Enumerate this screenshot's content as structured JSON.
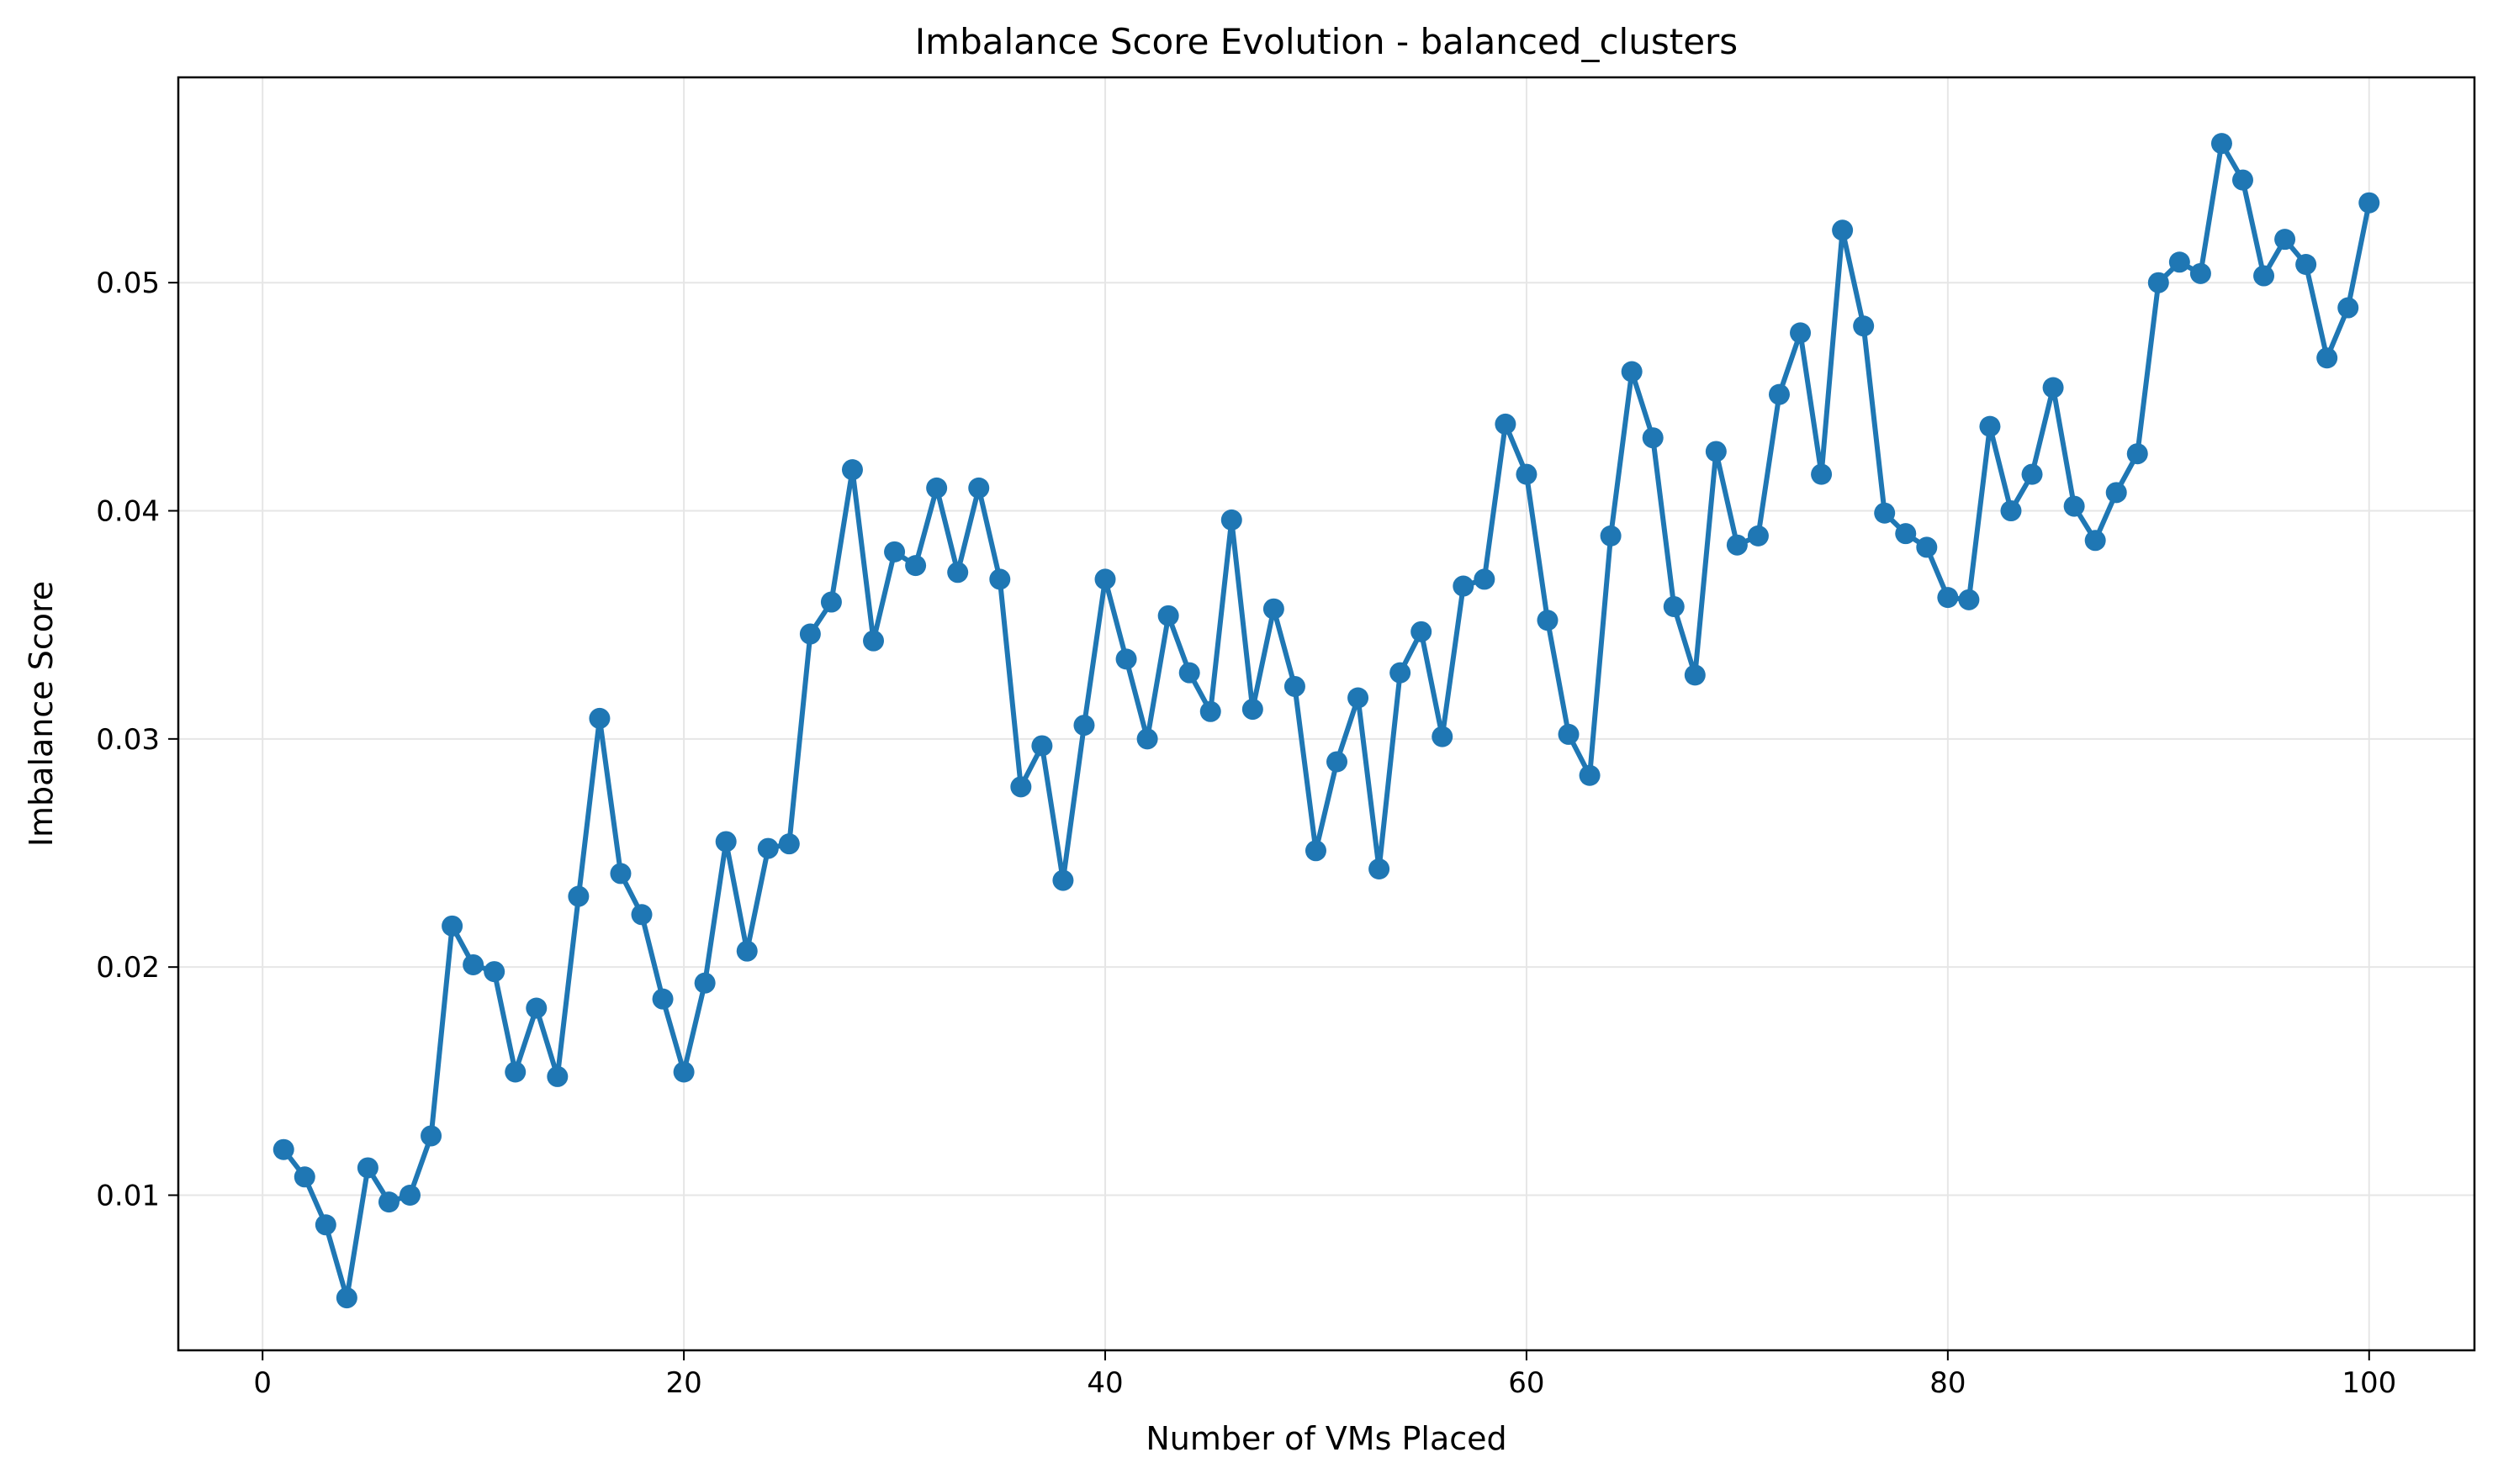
{
  "chart_data": {
    "type": "line",
    "title": "Imbalance Score Evolution - balanced_clusters",
    "xlabel": "Number of VMs Placed",
    "ylabel": "Imbalance Score",
    "xlim": [
      -4,
      105
    ],
    "ylim": [
      0.0032,
      0.059
    ],
    "xticks": [
      0,
      20,
      40,
      60,
      80,
      100
    ],
    "yticks": [
      0.01,
      0.02,
      0.03,
      0.04,
      0.05
    ],
    "xtick_labels": [
      "0",
      "20",
      "40",
      "60",
      "80",
      "100"
    ],
    "ytick_labels": [
      "0.01",
      "0.02",
      "0.03",
      "0.04",
      "0.05"
    ],
    "grid": true,
    "color": "#1f77b4",
    "marker": "circle",
    "series": [
      {
        "x": [
          1,
          2,
          3,
          4,
          5,
          6,
          7,
          8,
          9,
          10,
          11,
          12,
          13,
          14,
          15,
          16,
          17,
          18,
          19,
          20,
          21,
          22,
          23,
          24,
          25,
          26,
          27,
          28,
          29,
          30,
          31,
          32,
          33,
          34,
          35,
          36,
          37,
          38,
          39,
          40,
          41,
          42,
          43,
          44,
          45,
          46,
          47,
          48,
          49,
          50,
          51,
          52,
          53,
          54,
          55,
          56,
          57,
          58,
          59,
          60,
          61,
          62,
          63,
          64,
          65,
          66,
          67,
          68,
          69,
          70,
          71,
          72,
          73,
          74,
          75,
          76,
          77,
          78,
          79,
          80,
          81,
          82,
          83,
          84,
          85,
          86,
          87,
          88,
          89,
          90,
          91,
          92,
          93,
          94,
          95,
          96,
          97,
          98,
          99,
          100
        ],
        "values": [
          0.012,
          0.0108,
          0.0087,
          0.0055,
          0.0112,
          0.0097,
          0.01,
          0.0126,
          0.0218,
          0.0201,
          0.0198,
          0.0154,
          0.0182,
          0.0152,
          0.0231,
          0.0309,
          0.0241,
          0.0223,
          0.0186,
          0.0154,
          0.0193,
          0.0255,
          0.0207,
          0.0252,
          0.0254,
          0.0346,
          0.036,
          0.0418,
          0.0343,
          0.0382,
          0.0376,
          0.041,
          0.0373,
          0.041,
          0.037,
          0.0279,
          0.0297,
          0.0238,
          0.0306,
          0.037,
          0.0335,
          0.03,
          0.0354,
          0.0329,
          0.0312,
          0.0396,
          0.0313,
          0.0357,
          0.0323,
          0.0251,
          0.029,
          0.0318,
          0.0243,
          0.0329,
          0.0347,
          0.0301,
          0.0367,
          0.037,
          0.0438,
          0.0416,
          0.0352,
          0.0302,
          0.0284,
          0.0389,
          0.0461,
          0.0432,
          0.0358,
          0.0328,
          0.0426,
          0.0385,
          0.0389,
          0.0451,
          0.0478,
          0.0416,
          0.0523,
          0.0481,
          0.0399,
          0.039,
          0.0384,
          0.0362,
          0.0361,
          0.0437,
          0.04,
          0.0416,
          0.0454,
          0.0402,
          0.0387,
          0.0408,
          0.0425,
          0.05,
          0.0509,
          0.0504,
          0.0561,
          0.0545,
          0.0503,
          0.0519,
          0.0508,
          0.0467,
          0.0489,
          0.0535
        ]
      }
    ]
  }
}
